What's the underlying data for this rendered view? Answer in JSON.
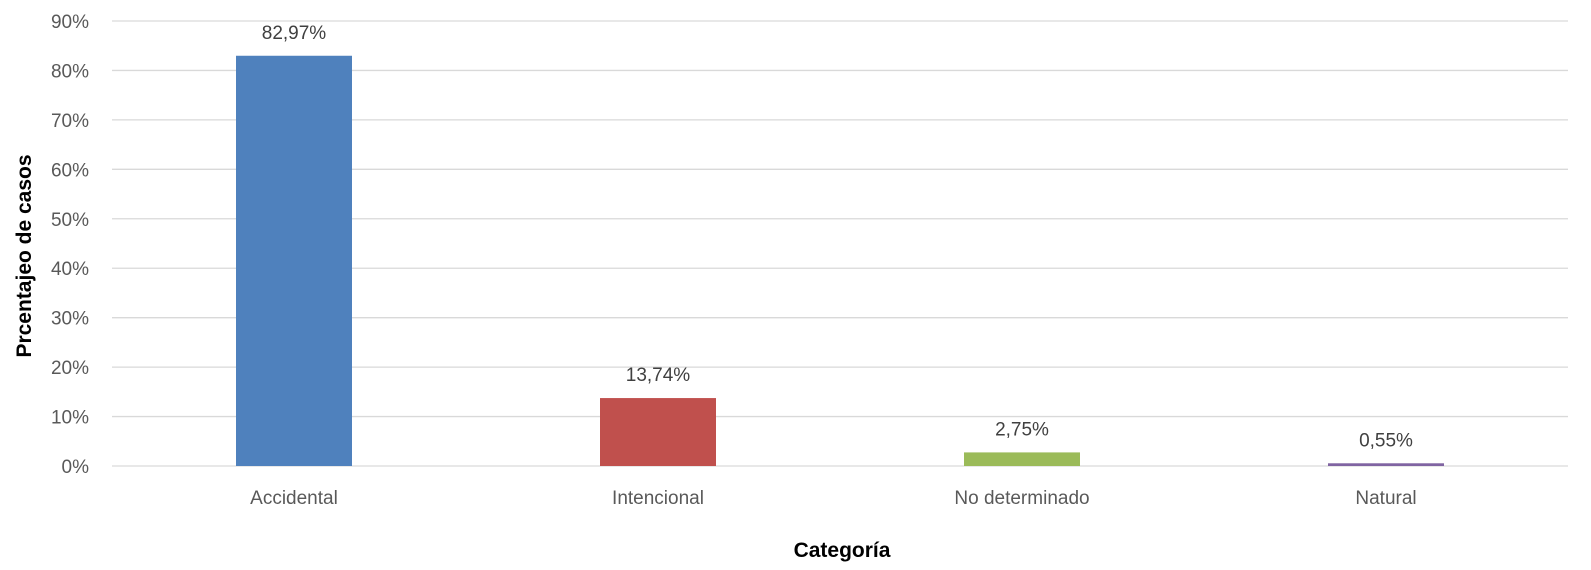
{
  "chart_data": {
    "type": "bar",
    "categories": [
      "Accidental",
      "Intencional",
      "No determinado",
      "Natural"
    ],
    "values": [
      82.97,
      13.74,
      2.75,
      0.55
    ],
    "data_labels": [
      "82,97%",
      "13,74%",
      "2,75%",
      "0,55%"
    ],
    "colors": [
      "#4f81bd",
      "#c0504d",
      "#9bbb59",
      "#8064a2"
    ],
    "xlabel": "Categoría",
    "ylabel": "Prcentajeo de casos",
    "ylim": [
      0,
      90
    ],
    "yticks": [
      0,
      10,
      20,
      30,
      40,
      50,
      60,
      70,
      80,
      90
    ],
    "ytick_labels": [
      "0%",
      "10%",
      "20%",
      "30%",
      "40%",
      "50%",
      "60%",
      "70%",
      "80%",
      "90%"
    ],
    "grid": true,
    "legend": "none"
  }
}
